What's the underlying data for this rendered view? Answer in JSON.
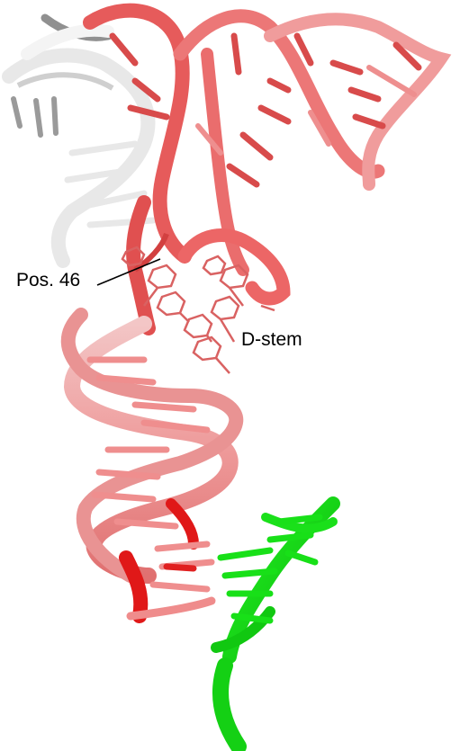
{
  "figure": {
    "labels": {
      "position": "Pos. 46",
      "stem": "D-stem"
    }
  },
  "colors": {
    "background": "#ffffff",
    "ribbon_dark_red": "#e01818",
    "ribbon_red": "#e85a5a",
    "ribbon_salmon": "#ef8c8c",
    "ribbon_pale": "#f6d6d6",
    "ribbon_white": "#f2f2f2",
    "ribbon_gray": "#9a9a9a",
    "fragment_green": "#16ea16"
  },
  "icons": [
    "trna-ribbon-structure",
    "green-rna-fragment",
    "pointer-line"
  ]
}
